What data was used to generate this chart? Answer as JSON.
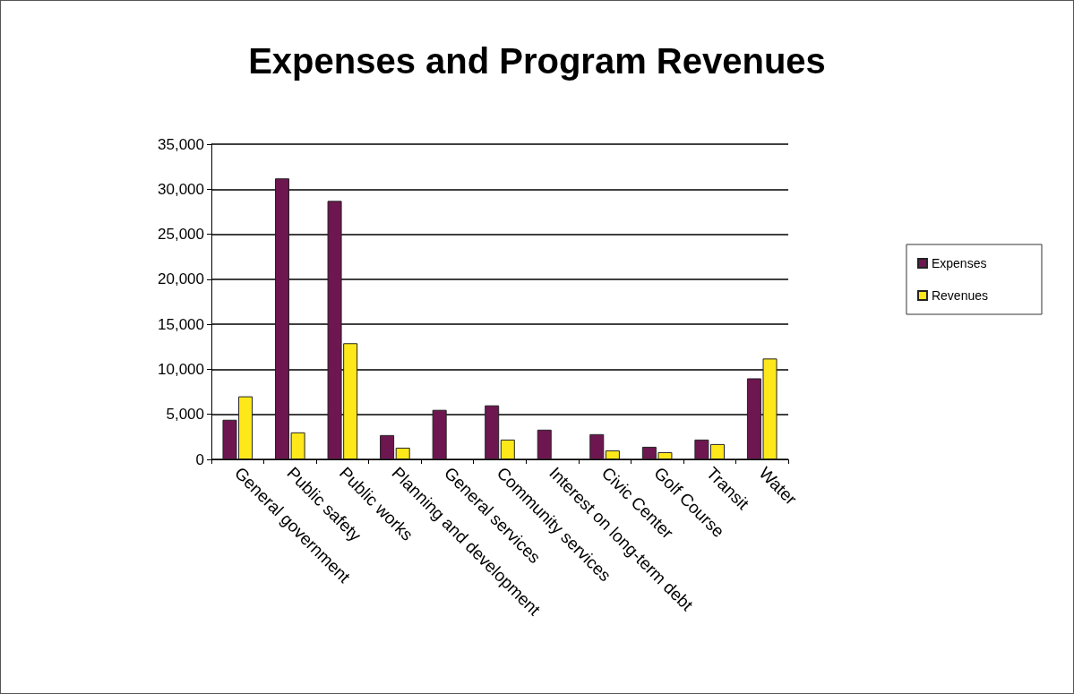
{
  "chart_data": {
    "type": "bar",
    "title": "Expenses and Program Revenues",
    "categories": [
      "General government",
      "Public safety",
      "Public works",
      "Planning and development",
      "General services",
      "Community services",
      "Interest on long-term debt",
      "Civic Center",
      "Golf Course",
      "Transit",
      "Water"
    ],
    "series": [
      {
        "name": "Expenses",
        "color": "#6e1650",
        "values": [
          4400,
          31200,
          28700,
          2700,
          5500,
          6000,
          3300,
          2800,
          1400,
          2200,
          9000
        ]
      },
      {
        "name": "Revenues",
        "color": "#ffe81a",
        "values": [
          7000,
          3000,
          12900,
          1300,
          0,
          2200,
          0,
          1000,
          800,
          1700,
          11200
        ]
      }
    ],
    "ylim": [
      0,
      35000
    ],
    "yticks": [
      0,
      {
        "value": 5000,
        "label": "5,000"
      },
      {
        "value": 10000,
        "label": "10,000"
      },
      {
        "value": 15000,
        "label": "15,000"
      },
      {
        "value": 20000,
        "label": "20,000"
      },
      {
        "value": 25000,
        "label": "25,000"
      },
      {
        "value": 30000,
        "label": "30,000"
      },
      {
        "value": 35000,
        "label": "35,000"
      }
    ],
    "grid": "y",
    "legend": "right"
  }
}
